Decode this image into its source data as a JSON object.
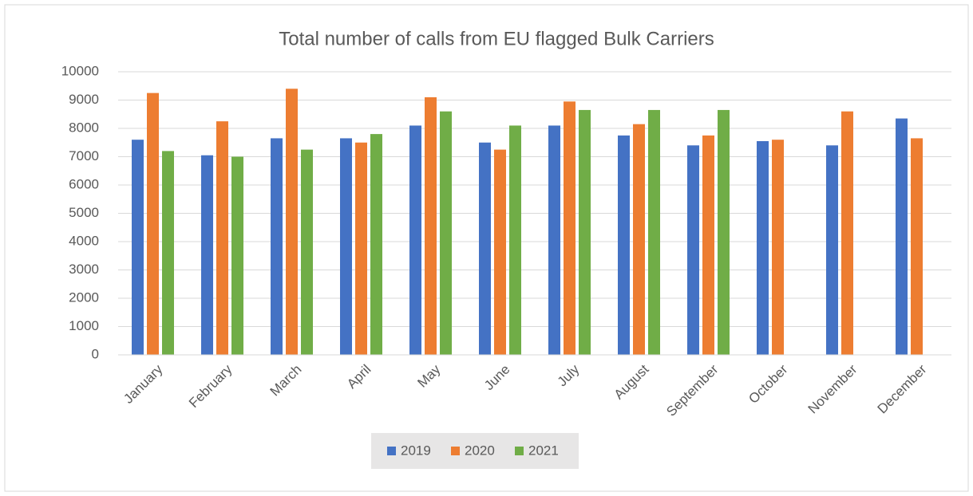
{
  "chart_data": {
    "type": "bar",
    "title": "Total number of calls from EU flagged Bulk Carriers",
    "categories": [
      "January",
      "February",
      "March",
      "April",
      "May",
      "June",
      "July",
      "August",
      "September",
      "October",
      "November",
      "December"
    ],
    "series": [
      {
        "name": "2019",
        "color": "#4472c4",
        "values": [
          7600,
          7050,
          7650,
          7650,
          8100,
          7500,
          8100,
          7750,
          7400,
          7550,
          7400,
          8350
        ]
      },
      {
        "name": "2020",
        "color": "#ed7d31",
        "values": [
          9250,
          8250,
          9400,
          7500,
          9100,
          7250,
          8950,
          8150,
          7750,
          7600,
          8600,
          7650
        ]
      },
      {
        "name": "2021",
        "color": "#70ad47",
        "values": [
          7200,
          7000,
          7250,
          7800,
          8600,
          8100,
          8650,
          8650,
          8650,
          null,
          null,
          null
        ]
      }
    ],
    "ylim": [
      0,
      10000
    ],
    "yticks": [
      0,
      1000,
      2000,
      3000,
      4000,
      5000,
      6000,
      7000,
      8000,
      9000,
      10000
    ],
    "grid": true,
    "legend": "bottom"
  }
}
